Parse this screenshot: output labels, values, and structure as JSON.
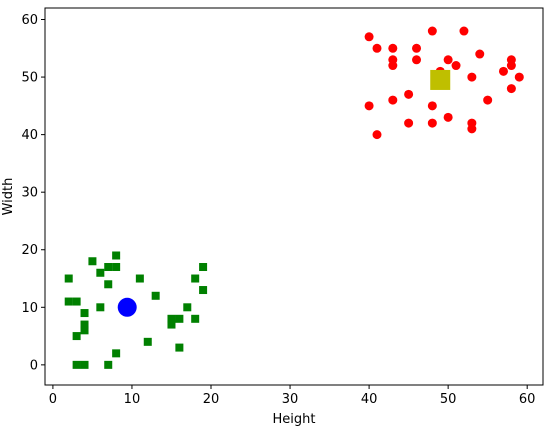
{
  "chart_data": {
    "type": "scatter",
    "title": "",
    "xlabel": "Height",
    "ylabel": "Width",
    "xlim": [
      -1,
      62
    ],
    "ylim": [
      -3.5,
      62
    ],
    "xticks": [
      0,
      10,
      20,
      30,
      40,
      50,
      60
    ],
    "yticks": [
      0,
      10,
      20,
      30,
      40,
      50,
      60
    ],
    "grid": false,
    "series": [
      {
        "marker": "square",
        "color": "#008000",
        "points": [
          [
            2,
            15
          ],
          [
            2,
            11
          ],
          [
            3,
            11
          ],
          [
            3,
            5
          ],
          [
            3,
            0
          ],
          [
            4,
            0
          ],
          [
            4,
            9
          ],
          [
            4,
            7
          ],
          [
            4,
            6
          ],
          [
            5,
            18
          ],
          [
            6,
            16
          ],
          [
            6,
            10
          ],
          [
            7,
            17
          ],
          [
            7,
            14
          ],
          [
            7,
            0
          ],
          [
            8,
            19
          ],
          [
            8,
            17
          ],
          [
            8,
            2
          ],
          [
            11,
            15
          ],
          [
            12,
            4
          ],
          [
            13,
            12
          ],
          [
            15,
            8
          ],
          [
            15,
            7
          ],
          [
            16,
            8
          ],
          [
            16,
            3
          ],
          [
            17,
            10
          ],
          [
            18,
            15
          ],
          [
            18,
            8
          ],
          [
            19,
            17
          ],
          [
            19,
            13
          ]
        ]
      },
      {
        "marker": "circle",
        "color": "#ff0000",
        "points": [
          [
            40,
            57
          ],
          [
            40,
            45
          ],
          [
            41,
            55
          ],
          [
            41,
            40
          ],
          [
            43,
            55
          ],
          [
            43,
            53
          ],
          [
            43,
            52
          ],
          [
            43,
            46
          ],
          [
            45,
            47
          ],
          [
            45,
            42
          ],
          [
            46,
            55
          ],
          [
            46,
            53
          ],
          [
            48,
            58
          ],
          [
            48,
            45
          ],
          [
            48,
            42
          ],
          [
            49,
            51
          ],
          [
            50,
            53
          ],
          [
            50,
            43
          ],
          [
            51,
            52
          ],
          [
            52,
            58
          ],
          [
            53,
            50
          ],
          [
            53,
            42
          ],
          [
            53,
            41
          ],
          [
            54,
            54
          ],
          [
            55,
            46
          ],
          [
            57,
            51
          ],
          [
            58,
            53
          ],
          [
            58,
            52
          ],
          [
            58,
            48
          ],
          [
            59,
            50
          ]
        ]
      },
      {
        "marker": "big-circle",
        "color": "#0000ff",
        "points": [
          [
            9.4,
            10
          ]
        ]
      },
      {
        "marker": "big-square",
        "color": "#bfbf00",
        "points": [
          [
            49,
            49.5
          ]
        ]
      }
    ]
  }
}
